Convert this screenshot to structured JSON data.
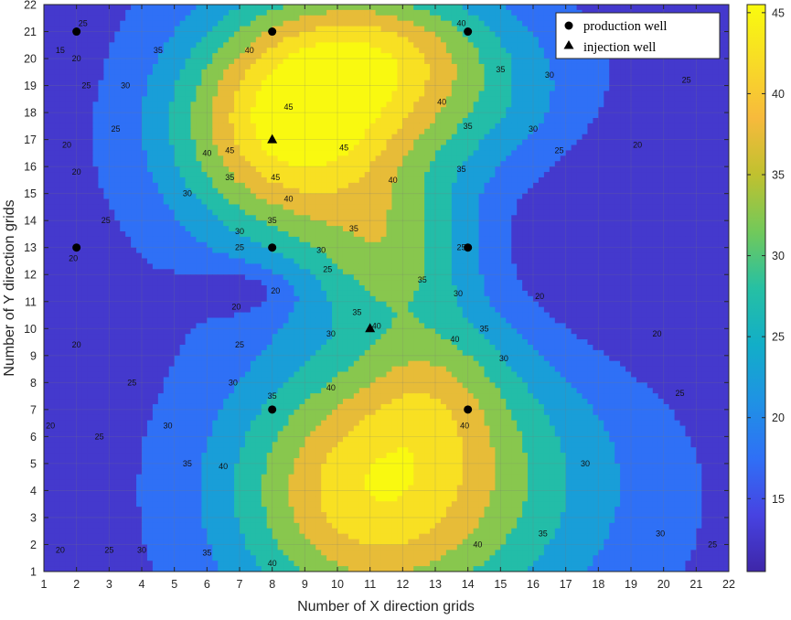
{
  "chart_data": {
    "type": "contour",
    "xlabel": "Number of X direction grids",
    "ylabel": "Number of Y direction grids",
    "x_ticks": [
      1,
      2,
      3,
      4,
      5,
      6,
      7,
      8,
      9,
      10,
      11,
      12,
      13,
      14,
      15,
      16,
      17,
      18,
      19,
      20,
      21,
      22
    ],
    "y_ticks": [
      1,
      2,
      3,
      4,
      5,
      6,
      7,
      8,
      9,
      10,
      11,
      12,
      13,
      14,
      15,
      16,
      17,
      18,
      19,
      20,
      21,
      22
    ],
    "xlim": [
      1,
      22
    ],
    "ylim": [
      1,
      22
    ],
    "grid": true,
    "colorbar": {
      "ticks": [
        15,
        20,
        25,
        30,
        35,
        40,
        45
      ],
      "range": [
        10.5,
        45.5
      ],
      "colormap": "parula"
    },
    "contour_levels": [
      15,
      20,
      25,
      30,
      35,
      40,
      45
    ],
    "contour_labels": [
      {
        "text": "15",
        "x": 1.5,
        "y": 20.3
      },
      {
        "text": "20",
        "x": 1.7,
        "y": 16.8
      },
      {
        "text": "20",
        "x": 2.0,
        "y": 20.0
      },
      {
        "text": "25",
        "x": 2.3,
        "y": 19.0
      },
      {
        "text": "25",
        "x": 2.2,
        "y": 21.3
      },
      {
        "text": "30",
        "x": 3.5,
        "y": 19.0
      },
      {
        "text": "35",
        "x": 4.5,
        "y": 20.3
      },
      {
        "text": "40",
        "x": 7.3,
        "y": 20.3
      },
      {
        "text": "40",
        "x": 13.8,
        "y": 21.3
      },
      {
        "text": "35",
        "x": 15.0,
        "y": 19.6
      },
      {
        "text": "30",
        "x": 16.5,
        "y": 19.4
      },
      {
        "text": "25",
        "x": 20.7,
        "y": 19.2
      },
      {
        "text": "45",
        "x": 8.5,
        "y": 18.2
      },
      {
        "text": "45",
        "x": 6.7,
        "y": 16.6
      },
      {
        "text": "45",
        "x": 8.1,
        "y": 15.6
      },
      {
        "text": "45",
        "x": 10.2,
        "y": 16.7
      },
      {
        "text": "40",
        "x": 13.2,
        "y": 18.4
      },
      {
        "text": "40",
        "x": 6.0,
        "y": 16.5
      },
      {
        "text": "40",
        "x": 8.5,
        "y": 14.8
      },
      {
        "text": "40",
        "x": 11.7,
        "y": 15.5
      },
      {
        "text": "35",
        "x": 14.0,
        "y": 17.5
      },
      {
        "text": "35",
        "x": 6.7,
        "y": 15.6
      },
      {
        "text": "35",
        "x": 13.8,
        "y": 15.9
      },
      {
        "text": "35",
        "x": 8.0,
        "y": 14.0
      },
      {
        "text": "35",
        "x": 10.5,
        "y": 13.7
      },
      {
        "text": "30",
        "x": 16.0,
        "y": 17.4
      },
      {
        "text": "30",
        "x": 5.4,
        "y": 15.0
      },
      {
        "text": "30",
        "x": 7.0,
        "y": 13.6
      },
      {
        "text": "30",
        "x": 9.5,
        "y": 12.9
      },
      {
        "text": "25",
        "x": 16.8,
        "y": 16.6
      },
      {
        "text": "25",
        "x": 3.2,
        "y": 17.4
      },
      {
        "text": "25",
        "x": 2.9,
        "y": 14.0
      },
      {
        "text": "25",
        "x": 7.0,
        "y": 13.0
      },
      {
        "text": "25",
        "x": 9.7,
        "y": 12.2
      },
      {
        "text": "25",
        "x": 13.8,
        "y": 13.0
      },
      {
        "text": "20",
        "x": 19.2,
        "y": 16.8
      },
      {
        "text": "20",
        "x": 2.0,
        "y": 15.8
      },
      {
        "text": "20",
        "x": 1.9,
        "y": 12.6
      },
      {
        "text": "20",
        "x": 8.1,
        "y": 11.4
      },
      {
        "text": "20",
        "x": 6.9,
        "y": 10.8
      },
      {
        "text": "20",
        "x": 16.2,
        "y": 11.2
      },
      {
        "text": "20",
        "x": 19.8,
        "y": 9.8
      },
      {
        "text": "25",
        "x": 20.5,
        "y": 7.6
      },
      {
        "text": "30",
        "x": 15.1,
        "y": 8.9
      },
      {
        "text": "30",
        "x": 13.7,
        "y": 11.3
      },
      {
        "text": "35",
        "x": 14.5,
        "y": 10.0
      },
      {
        "text": "35",
        "x": 12.6,
        "y": 11.8
      },
      {
        "text": "40",
        "x": 11.2,
        "y": 10.1
      },
      {
        "text": "40",
        "x": 13.6,
        "y": 9.6
      },
      {
        "text": "40",
        "x": 9.8,
        "y": 7.8
      },
      {
        "text": "40",
        "x": 13.9,
        "y": 6.4
      },
      {
        "text": "40",
        "x": 6.5,
        "y": 4.9
      },
      {
        "text": "40",
        "x": 8.0,
        "y": 1.3
      },
      {
        "text": "40",
        "x": 14.3,
        "y": 2.0
      },
      {
        "text": "35",
        "x": 10.6,
        "y": 10.6
      },
      {
        "text": "35",
        "x": 8.0,
        "y": 7.5
      },
      {
        "text": "35",
        "x": 5.4,
        "y": 5.0
      },
      {
        "text": "35",
        "x": 6.0,
        "y": 1.7
      },
      {
        "text": "35",
        "x": 16.3,
        "y": 2.4
      },
      {
        "text": "30",
        "x": 6.8,
        "y": 8.0
      },
      {
        "text": "30",
        "x": 4.8,
        "y": 6.4
      },
      {
        "text": "30",
        "x": 4.0,
        "y": 1.8
      },
      {
        "text": "30",
        "x": 9.8,
        "y": 9.8
      },
      {
        "text": "30",
        "x": 17.6,
        "y": 5.0
      },
      {
        "text": "30",
        "x": 19.9,
        "y": 2.4
      },
      {
        "text": "25",
        "x": 7.0,
        "y": 9.4
      },
      {
        "text": "25",
        "x": 3.7,
        "y": 8.0
      },
      {
        "text": "25",
        "x": 2.7,
        "y": 6.0
      },
      {
        "text": "25",
        "x": 3.0,
        "y": 1.8
      },
      {
        "text": "25",
        "x": 21.5,
        "y": 2.0
      },
      {
        "text": "20",
        "x": 2.0,
        "y": 9.4
      },
      {
        "text": "20",
        "x": 1.2,
        "y": 6.4
      },
      {
        "text": "20",
        "x": 1.5,
        "y": 1.8
      }
    ],
    "series": [
      {
        "name": "production well",
        "marker": "circle",
        "points": [
          [
            2,
            21
          ],
          [
            8,
            21
          ],
          [
            14,
            21
          ],
          [
            2,
            13
          ],
          [
            8,
            13
          ],
          [
            14,
            13
          ],
          [
            8,
            7
          ],
          [
            14,
            7
          ]
        ]
      },
      {
        "name": "injection well",
        "marker": "triangle",
        "points": [
          [
            8,
            17
          ],
          [
            11,
            10
          ]
        ]
      }
    ]
  },
  "colors": {
    "parula_stops": [
      "#3e26a8",
      "#4743e2",
      "#2f70f6",
      "#1f92e4",
      "#12aec8",
      "#26c0a3",
      "#72c95a",
      "#c0c12f",
      "#f7ba3c",
      "#f8dc26",
      "#f9fb0e"
    ]
  }
}
